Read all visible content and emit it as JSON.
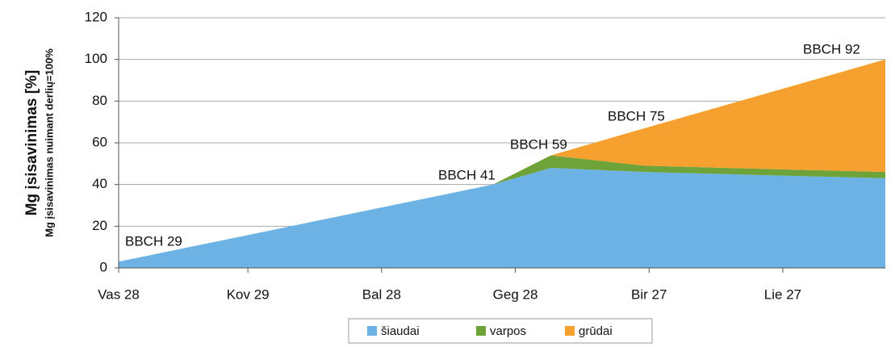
{
  "chart_data": {
    "type": "stacked_area",
    "y_label": "Mg įsisavinimas [%]",
    "y_sublabel": "Mg įsisavinimas nuimant derlių=100%",
    "x": [
      0,
      84,
      97,
      118,
      172
    ],
    "xlim": [
      0,
      172
    ],
    "xticks": [
      {
        "value": 0,
        "label": "Vas 28"
      },
      {
        "value": 29,
        "label": "Kov 29"
      },
      {
        "value": 59,
        "label": "Bal 28"
      },
      {
        "value": 89,
        "label": "Geg 28"
      },
      {
        "value": 119,
        "label": "Bir 27"
      },
      {
        "value": 149,
        "label": "Lie 27"
      }
    ],
    "ylim": [
      0,
      120
    ],
    "yticks": [
      0,
      20,
      40,
      60,
      80,
      100,
      120
    ],
    "grid": true,
    "series": [
      {
        "name": "šiaudai",
        "color": "#6cb2e4",
        "values": [
          3,
          40,
          48,
          46,
          43
        ]
      },
      {
        "name": "varpos",
        "color": "#6ea33a",
        "values": [
          0,
          0,
          6,
          3,
          3
        ]
      },
      {
        "name": "grūdai",
        "color": "#f6a030",
        "values": [
          0,
          0,
          0,
          18,
          54
        ]
      }
    ],
    "annotations": [
      "BBCH 29",
      "BBCH 41",
      "BBCH 59",
      "BBCH 75",
      "BBCH 92"
    ]
  }
}
